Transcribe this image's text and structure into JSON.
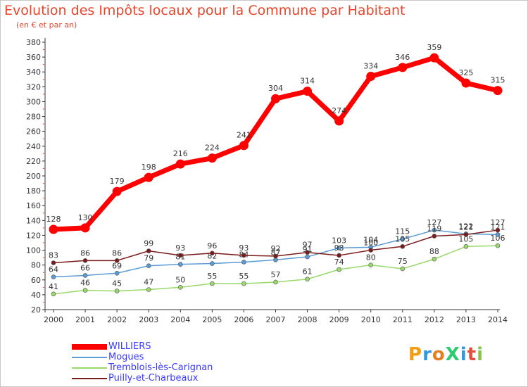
{
  "chart_data": {
    "type": "line",
    "title": "Evolution des Impôts locaux pour la Commune par Habitant",
    "subtitle": "(en € et par an)",
    "x": [
      "2000",
      "2001",
      "2002",
      "2003",
      "2004",
      "2005",
      "2006",
      "2007",
      "2008",
      "2009",
      "2010",
      "2011",
      "2012",
      "2013",
      "2014"
    ],
    "ylim": [
      20,
      380
    ],
    "yticks": [
      20,
      40,
      60,
      80,
      100,
      120,
      140,
      160,
      180,
      200,
      220,
      240,
      260,
      280,
      300,
      320,
      340,
      360,
      380
    ],
    "grid": false,
    "legend_position": "bottom-left",
    "series": [
      {
        "name": "WILLIERS",
        "color": "#ff0000",
        "values": [
          128,
          130,
          179,
          198,
          216,
          224,
          241,
          304,
          314,
          274,
          334,
          346,
          359,
          325,
          315
        ],
        "labels": [
          "128",
          "130",
          "179",
          "198",
          "216",
          "224",
          "241",
          "304",
          "314",
          "274",
          "334",
          "346",
          "359",
          "325",
          "315"
        ]
      },
      {
        "name": "Mogues",
        "color": "#5b9bd5",
        "values": [
          64,
          66,
          69,
          79,
          81,
          82,
          84,
          87,
          91,
          103,
          104,
          115,
          127,
          122,
          121
        ],
        "labels": [
          "64",
          "66",
          "69",
          "79",
          "81",
          "82",
          "84",
          "87",
          "91",
          "103",
          "104",
          "115",
          "127",
          "122",
          "121"
        ]
      },
      {
        "name": "Tremblois-lès-Carignan",
        "color": "#99d86a",
        "values": [
          41,
          46,
          45,
          47,
          50,
          55,
          55,
          57,
          61,
          74,
          80,
          75,
          88,
          105,
          106
        ],
        "labels": [
          "41",
          "46",
          "45",
          "47",
          "50",
          "55",
          "55",
          "57",
          "61",
          "74",
          "80",
          "75",
          "88",
          "105",
          "106"
        ]
      },
      {
        "name": "Puilly-et-Charbeaux",
        "color": "#7b1a1a",
        "values": [
          83,
          86,
          86,
          99,
          93,
          96,
          93,
          92,
          97,
          93,
          100,
          105,
          119,
          121,
          127
        ],
        "labels": [
          "83",
          "86",
          "86",
          "99",
          "93",
          "96",
          "93",
          "92",
          "97",
          "93",
          "100",
          "105",
          "119",
          "121",
          "127"
        ]
      }
    ]
  },
  "legend": {
    "items": [
      "WILLIERS",
      "Mogues",
      "Tremblois-lès-Carignan",
      "Puilly-et-Charbeaux"
    ]
  },
  "logo": {
    "text": "ProXiti"
  }
}
